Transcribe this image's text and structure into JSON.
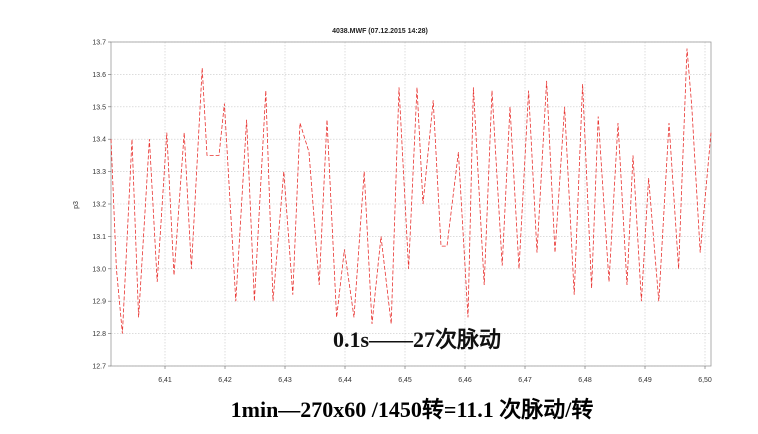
{
  "chart_data": {
    "type": "line",
    "title": "4038.MWF (07.12.2015 14:28)",
    "xlabel": "",
    "ylabel": "p3",
    "xlim": [
      6.401,
      6.501
    ],
    "ylim": [
      12.7,
      13.7
    ],
    "x_ticks": [
      "6,41",
      "6,42",
      "6,43",
      "6,44",
      "6,45",
      "6,46",
      "6,47",
      "6,48",
      "6,49",
      "6,50"
    ],
    "y_ticks": [
      "13.7",
      "13.6",
      "13.5",
      "13.4",
      "13.3",
      "13.2",
      "13.1",
      "13.0",
      "12.9",
      "12.8",
      "12.7"
    ],
    "grid": true,
    "line_style": "dashed",
    "series": [
      {
        "color": "#e8322f",
        "points": [
          [
            6.401,
            13.4
          ],
          [
            6.4019,
            13.0
          ],
          [
            6.4029,
            12.8
          ],
          [
            6.4045,
            13.4
          ],
          [
            6.4056,
            12.85
          ],
          [
            6.4074,
            13.4
          ],
          [
            6.4087,
            12.96
          ],
          [
            6.4103,
            13.42
          ],
          [
            6.4115,
            12.98
          ],
          [
            6.4132,
            13.42
          ],
          [
            6.4144,
            13.0
          ],
          [
            6.4162,
            13.62
          ],
          [
            6.417,
            13.35
          ],
          [
            6.419,
            13.35
          ],
          [
            6.4199,
            13.51
          ],
          [
            6.4218,
            12.9
          ],
          [
            6.4236,
            13.46
          ],
          [
            6.4249,
            12.9
          ],
          [
            6.4268,
            13.55
          ],
          [
            6.428,
            12.9
          ],
          [
            6.4298,
            13.3
          ],
          [
            6.4313,
            12.92
          ],
          [
            6.4325,
            13.45
          ],
          [
            6.434,
            13.36
          ],
          [
            6.4357,
            12.95
          ],
          [
            6.437,
            13.46
          ],
          [
            6.4386,
            12.85
          ],
          [
            6.4399,
            13.06
          ],
          [
            6.4415,
            12.85
          ],
          [
            6.4432,
            13.3
          ],
          [
            6.4445,
            12.83
          ],
          [
            6.446,
            13.1
          ],
          [
            6.4477,
            12.83
          ],
          [
            6.449,
            13.56
          ],
          [
            6.4506,
            13.0
          ],
          [
            6.452,
            13.56
          ],
          [
            6.453,
            13.2
          ],
          [
            6.4547,
            13.52
          ],
          [
            6.456,
            13.07
          ],
          [
            6.457,
            13.07
          ],
          [
            6.4589,
            13.36
          ],
          [
            6.4605,
            12.85
          ],
          [
            6.4614,
            13.56
          ],
          [
            6.4632,
            12.95
          ],
          [
            6.4645,
            13.55
          ],
          [
            6.4662,
            13.01
          ],
          [
            6.4675,
            13.5
          ],
          [
            6.469,
            13.0
          ],
          [
            6.4706,
            13.55
          ],
          [
            6.472,
            13.05
          ],
          [
            6.4736,
            13.58
          ],
          [
            6.475,
            13.05
          ],
          [
            6.4766,
            13.5
          ],
          [
            6.4782,
            12.92
          ],
          [
            6.4796,
            13.57
          ],
          [
            6.4811,
            12.94
          ],
          [
            6.4822,
            13.47
          ],
          [
            6.484,
            12.96
          ],
          [
            6.4855,
            13.45
          ],
          [
            6.487,
            12.95
          ],
          [
            6.488,
            13.35
          ],
          [
            6.4894,
            12.9
          ],
          [
            6.4906,
            13.28
          ],
          [
            6.4923,
            12.9
          ],
          [
            6.494,
            13.45
          ],
          [
            6.4956,
            13.0
          ],
          [
            6.497,
            13.68
          ],
          [
            6.4978,
            13.5
          ],
          [
            6.4992,
            13.05
          ],
          [
            6.501,
            13.42
          ]
        ]
      }
    ]
  },
  "annotations": {
    "pulse_note": "0.1s——27次脉动",
    "formula": "1min—270x60  /1450转=11.1 次脉动/转"
  }
}
